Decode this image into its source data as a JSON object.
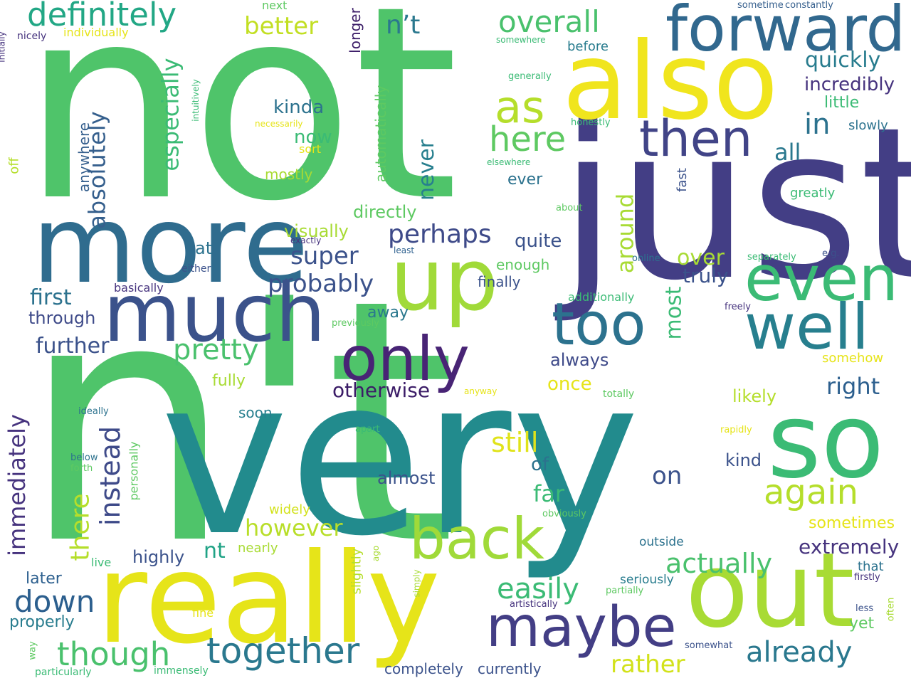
{
  "words": [
    {
      "text": "not",
      "color": "#4fc46a"
    },
    {
      "text": "n't",
      "color": "#4fc46a"
    },
    {
      "text": "very",
      "color": "#228b8d"
    },
    {
      "text": "just",
      "color": "#433e85"
    },
    {
      "text": "really",
      "color": "#e6e419"
    },
    {
      "text": "also",
      "color": "#f0e51d"
    },
    {
      "text": "more",
      "color": "#2f6c8e"
    },
    {
      "text": "much",
      "color": "#3b528b"
    },
    {
      "text": "up",
      "color": "#a0da39"
    },
    {
      "text": "so",
      "color": "#3bbb75"
    },
    {
      "text": "out",
      "color": "#a8db34"
    },
    {
      "text": "forward",
      "color": "#31688e"
    },
    {
      "text": "even",
      "color": "#3bbb75"
    },
    {
      "text": "well",
      "color": "#277f8e"
    },
    {
      "text": "too",
      "color": "#2c728e"
    },
    {
      "text": "only",
      "color": "#482475"
    },
    {
      "text": "then",
      "color": "#414487"
    },
    {
      "text": "back",
      "color": "#a0da39"
    },
    {
      "text": "maybe",
      "color": "#433e85"
    },
    {
      "text": "definitely",
      "color": "#22a785"
    },
    {
      "text": "again",
      "color": "#b5de2b"
    },
    {
      "text": "together",
      "color": "#2a788e"
    },
    {
      "text": "though",
      "color": "#4ac16d"
    },
    {
      "text": "already",
      "color": "#2a788e"
    },
    {
      "text": "pretty",
      "color": "#4ac16d"
    },
    {
      "text": "as",
      "color": "#b5de2b"
    },
    {
      "text": "here",
      "color": "#5ec962"
    },
    {
      "text": "overall",
      "color": "#4ac16d"
    },
    {
      "text": "in",
      "color": "#2c728e"
    },
    {
      "text": "actually",
      "color": "#4ac16d"
    },
    {
      "text": "easily",
      "color": "#3bbb75"
    },
    {
      "text": "down",
      "color": "#2c5f8e"
    },
    {
      "text": "perhaps",
      "color": "#3e4a89"
    },
    {
      "text": "instead",
      "color": "#3e4a89"
    },
    {
      "text": "probably",
      "color": "#3b528b"
    },
    {
      "text": "super",
      "color": "#3b528b"
    },
    {
      "text": "still",
      "color": "#e0e31a"
    },
    {
      "text": "absolutely",
      "color": "#355f8d"
    },
    {
      "text": "especially",
      "color": "#3bbb75"
    },
    {
      "text": "better",
      "color": "#c2df23"
    },
    {
      "text": "n’t",
      "color": "#2a788e"
    },
    {
      "text": "immediately",
      "color": "#46337e"
    },
    {
      "text": "however",
      "color": "#b8de29"
    },
    {
      "text": "there",
      "color": "#b5de2b"
    },
    {
      "text": "rather",
      "color": "#d2e21b"
    },
    {
      "text": "around",
      "color": "#a8db34"
    },
    {
      "text": "most",
      "color": "#3bbb75"
    },
    {
      "text": "first",
      "color": "#2c728e"
    },
    {
      "text": "further",
      "color": "#3b528b"
    },
    {
      "text": "otherwise",
      "color": "#3b1c67"
    },
    {
      "text": "right",
      "color": "#2c5f8e"
    },
    {
      "text": "far",
      "color": "#3bbb75"
    },
    {
      "text": "on",
      "color": "#3b528b"
    },
    {
      "text": "extremely",
      "color": "#46337e"
    },
    {
      "text": "quickly",
      "color": "#287c8e"
    },
    {
      "text": "incredibly",
      "color": "#46337e"
    },
    {
      "text": "all",
      "color": "#2a788e"
    },
    {
      "text": "over",
      "color": "#a8db34"
    },
    {
      "text": "truly",
      "color": "#3b528b"
    },
    {
      "text": "never",
      "color": "#277f8e"
    },
    {
      "text": "kinda",
      "color": "#2c728e"
    },
    {
      "text": "now",
      "color": "#3bbb75"
    },
    {
      "text": "quite",
      "color": "#3b528b"
    },
    {
      "text": "directly",
      "color": "#5ec962"
    },
    {
      "text": "visually",
      "color": "#a8db34"
    },
    {
      "text": "nt",
      "color": "#20a386"
    },
    {
      "text": "once",
      "color": "#e6e419"
    },
    {
      "text": "always",
      "color": "#3e4a89"
    },
    {
      "text": "likely",
      "color": "#b5de2b"
    },
    {
      "text": "sometimes",
      "color": "#e6e419"
    },
    {
      "text": "almost",
      "color": "#3b528b"
    },
    {
      "text": "of",
      "color": "#2c728e"
    },
    {
      "text": "kind",
      "color": "#3b528b"
    },
    {
      "text": "yet",
      "color": "#5ec962"
    },
    {
      "text": "currently",
      "color": "#3b528b"
    },
    {
      "text": "completely",
      "color": "#3b528b"
    },
    {
      "text": "highly",
      "color": "#3b528b"
    },
    {
      "text": "through",
      "color": "#3e4a89"
    },
    {
      "text": "later",
      "color": "#2c5f8e"
    },
    {
      "text": "properly",
      "color": "#287c8e"
    },
    {
      "text": "longer",
      "color": "#3b1c67"
    },
    {
      "text": "automatically",
      "color": "#5ec962"
    },
    {
      "text": "anywhere",
      "color": "#355f8d"
    },
    {
      "text": "mostly",
      "color": "#a8db34"
    },
    {
      "text": "away",
      "color": "#2a788e"
    },
    {
      "text": "ever",
      "color": "#2c728e"
    },
    {
      "text": "enough",
      "color": "#5ec962"
    },
    {
      "text": "finally",
      "color": "#3b528b"
    },
    {
      "text": "fully",
      "color": "#a8db34"
    },
    {
      "text": "little",
      "color": "#3bbb75"
    },
    {
      "text": "slowly",
      "color": "#2c728e"
    },
    {
      "text": "greatly",
      "color": "#3bbb75"
    },
    {
      "text": "soon",
      "color": "#277f8e"
    },
    {
      "text": "widely",
      "color": "#d2e21b"
    },
    {
      "text": "nearly",
      "color": "#a8db34"
    },
    {
      "text": "outside",
      "color": "#2c728e"
    },
    {
      "text": "seriously",
      "color": "#287c8e"
    },
    {
      "text": "that",
      "color": "#2c728e"
    },
    {
      "text": "at",
      "color": "#2c728e"
    },
    {
      "text": "basically",
      "color": "#46337e"
    },
    {
      "text": "either",
      "color": "#3b528b"
    },
    {
      "text": "additionally",
      "color": "#3bbb75"
    },
    {
      "text": "off",
      "color": "#b5de2b"
    },
    {
      "text": "personally",
      "color": "#5ec962"
    },
    {
      "text": "slightly",
      "color": "#b5de2b"
    },
    {
      "text": "live",
      "color": "#3bbb75"
    },
    {
      "text": "next",
      "color": "#5ec962"
    },
    {
      "text": "before",
      "color": "#287c8e"
    },
    {
      "text": "sometime",
      "color": "#355f8d"
    },
    {
      "text": "constantly",
      "color": "#355f8d"
    },
    {
      "text": "nicely",
      "color": "#46337e"
    },
    {
      "text": "individually",
      "color": "#e6e419"
    },
    {
      "text": "initially",
      "color": "#46337e"
    },
    {
      "text": "somewhere",
      "color": "#3bbb75"
    },
    {
      "text": "generally",
      "color": "#3bbb75"
    },
    {
      "text": "honestly",
      "color": "#3bbb75"
    },
    {
      "text": "elsewhere",
      "color": "#3bbb75"
    },
    {
      "text": "necessarily",
      "color": "#e6e419"
    },
    {
      "text": "sort",
      "color": "#e6e419"
    },
    {
      "text": "intuitively",
      "color": "#3bbb75"
    },
    {
      "text": "fast",
      "color": "#3b528b"
    },
    {
      "text": "about",
      "color": "#5ec962"
    },
    {
      "text": "exactly",
      "color": "#46337e"
    },
    {
      "text": "least",
      "color": "#2c5f8e"
    },
    {
      "text": "online",
      "color": "#2c728e"
    },
    {
      "text": "separately",
      "color": "#3bbb75"
    },
    {
      "text": "e.g.",
      "color": "#3b528b"
    },
    {
      "text": "freely",
      "color": "#46337e"
    },
    {
      "text": "previously",
      "color": "#5ec962"
    },
    {
      "text": "somehow",
      "color": "#e6e419"
    },
    {
      "text": "anyway",
      "color": "#e6e419"
    },
    {
      "text": "totally",
      "color": "#5ec962"
    },
    {
      "text": "ideally",
      "color": "#2c728e"
    },
    {
      "text": "apart",
      "color": "#3bbb75"
    },
    {
      "text": "rapidly",
      "color": "#e6e419"
    },
    {
      "text": "below",
      "color": "#2c728e"
    },
    {
      "text": "forth",
      "color": "#5ec962"
    },
    {
      "text": "obviously",
      "color": "#5ec962"
    },
    {
      "text": "ago",
      "color": "#a8db34"
    },
    {
      "text": "simply",
      "color": "#a8db34"
    },
    {
      "text": "partially",
      "color": "#5ec962"
    },
    {
      "text": "artistically",
      "color": "#46337e"
    },
    {
      "text": "firstly",
      "color": "#46337e"
    },
    {
      "text": "fine",
      "color": "#e6e419"
    },
    {
      "text": "less",
      "color": "#3b528b"
    },
    {
      "text": "often",
      "color": "#a8db34"
    },
    {
      "text": "somewhat",
      "color": "#3b528b"
    },
    {
      "text": "way",
      "color": "#5ec962"
    },
    {
      "text": "particularly",
      "color": "#3bbb75"
    },
    {
      "text": "immensely",
      "color": "#3bbb75"
    }
  ]
}
